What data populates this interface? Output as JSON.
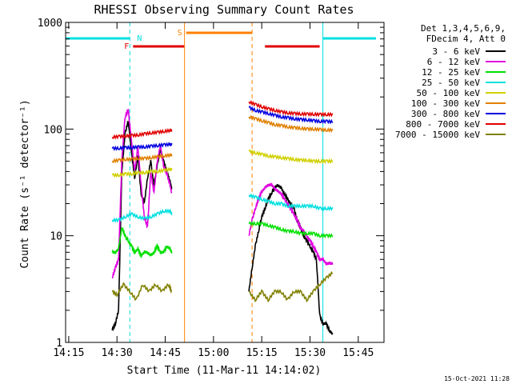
{
  "chart_data": {
    "type": "line",
    "title": "RHESSI Observing Summary Count Rates",
    "xlabel": "Start Time (11-Mar-11 14:14:02)",
    "ylabel": "Count Rate (s⁻¹ detector⁻¹)",
    "y_scale": "log",
    "ylim": [
      1,
      1000
    ],
    "xlim": [
      "14:14:02",
      "15:53:00"
    ],
    "x_ticks": [
      "14:15",
      "14:30",
      "14:45",
      "15:00",
      "15:15",
      "15:30",
      "15:45"
    ],
    "y_ticks": [
      "1",
      "10",
      "100",
      "1000"
    ],
    "legend_header": [
      "Det 1,3,4,5,6,9,",
      "FDecim 4, Att 0"
    ],
    "timestamp": "15-Oct-2021 11:28",
    "legend_position": "right",
    "flags": {
      "night": {
        "label": "N",
        "color": "#00e0e0"
      },
      "flare": {
        "label": "F",
        "color": "#e00000"
      },
      "saa": {
        "label": "S",
        "color": "#ff8000"
      }
    },
    "series": [
      {
        "name": "3 - 6 keV",
        "color": "#000000",
        "segments": [
          {
            "x": [
              "14:28:30",
              "14:29:30",
              "14:30:30",
              "14:31:30",
              "14:32:30",
              "14:33:30",
              "14:34:30",
              "14:35:30",
              "14:36:30",
              "14:37:30",
              "14:38:30",
              "14:39:30",
              "14:40:30",
              "14:41:30",
              "14:42:30",
              "14:43:30",
              "14:44:30",
              "14:45:30",
              "14:46:30",
              "14:47:00"
            ],
            "y": [
              1.3,
              1.5,
              2.0,
              40,
              90,
              120,
              60,
              35,
              55,
              25,
              20,
              35,
              50,
              30,
              45,
              65,
              50,
              40,
              32,
              28
            ]
          },
          {
            "x": [
              "15:11:00",
              "15:12:00",
              "15:13:00",
              "15:14:00",
              "15:15:00",
              "15:16:00",
              "15:17:00",
              "15:18:00",
              "15:19:00",
              "15:20:00",
              "15:21:00",
              "15:22:00",
              "15:23:00",
              "15:24:00",
              "15:25:00",
              "15:26:00",
              "15:27:00",
              "15:28:00",
              "15:29:00",
              "15:30:00",
              "15:31:00",
              "15:32:00",
              "15:33:00",
              "15:34:00",
              "15:35:00",
              "15:36:00",
              "15:37:00"
            ],
            "y": [
              3,
              5,
              8,
              11,
              15,
              18,
              22,
              25,
              28,
              30,
              28,
              25,
              22,
              20,
              18,
              14,
              12,
              10,
              9,
              8,
              7,
              6,
              1.8,
              1.5,
              1.5,
              1.3,
              1.2
            ]
          }
        ]
      },
      {
        "name": "6 - 12 keV",
        "color": "#e000e0",
        "segments": [
          {
            "x": [
              "14:28:30",
              "14:29:30",
              "14:30:30",
              "14:31:30",
              "14:32:30",
              "14:33:30",
              "14:34:30",
              "14:35:30",
              "14:36:30",
              "14:37:30",
              "14:38:30",
              "14:39:30",
              "14:40:30",
              "14:41:30",
              "14:42:30",
              "14:43:30",
              "14:44:30",
              "14:45:30",
              "14:46:30",
              "14:47:00"
            ],
            "y": [
              4,
              5,
              6,
              50,
              130,
              150,
              80,
              40,
              70,
              30,
              15,
              12,
              40,
              25,
              50,
              70,
              45,
              38,
              30,
              25
            ]
          },
          {
            "x": [
              "15:11:00",
              "15:12:00",
              "15:13:00",
              "15:14:00",
              "15:15:00",
              "15:16:00",
              "15:17:00",
              "15:18:00",
              "15:19:00",
              "15:20:00",
              "15:21:00",
              "15:22:00",
              "15:23:00",
              "15:24:00",
              "15:25:00",
              "15:26:00",
              "15:27:00",
              "15:28:00",
              "15:29:00",
              "15:30:00",
              "15:31:00",
              "15:32:00",
              "15:33:00",
              "15:34:00",
              "15:35:00",
              "15:36:00",
              "15:37:00"
            ],
            "y": [
              10,
              14,
              18,
              22,
              26,
              28,
              30,
              30,
              28,
              26,
              25,
              22,
              20,
              18,
              16,
              14,
              12,
              11,
              10,
              9,
              8,
              7,
              6,
              6,
              5.5,
              5.5,
              5.5
            ]
          }
        ]
      },
      {
        "name": "12 - 25 keV",
        "color": "#00e000",
        "segments": [
          {
            "x": [
              "14:28:30",
              "14:29:30",
              "14:30:30",
              "14:31:30",
              "14:32:30",
              "14:33:30",
              "14:34:30",
              "14:35:30",
              "14:36:30",
              "14:37:30",
              "14:38:30",
              "14:39:30",
              "14:40:30",
              "14:41:30",
              "14:42:30",
              "14:43:30",
              "14:44:30",
              "14:45:30",
              "14:46:30",
              "14:47:00"
            ],
            "y": [
              7,
              7,
              7.5,
              12,
              10,
              9,
              8,
              7,
              7.5,
              6.5,
              7,
              7,
              6.5,
              7,
              8,
              7,
              7,
              8,
              7.5,
              7
            ]
          },
          {
            "x": [
              "15:11:00",
              "15:13:00",
              "15:15:00",
              "15:17:00",
              "15:19:00",
              "15:21:00",
              "15:23:00",
              "15:25:00",
              "15:27:00",
              "15:29:00",
              "15:31:00",
              "15:33:00",
              "15:35:00",
              "15:37:00"
            ],
            "y": [
              13,
              13,
              13,
              12.5,
              12,
              11.5,
              11,
              11,
              10.5,
              10.5,
              10.5,
              10,
              10,
              10
            ]
          }
        ]
      },
      {
        "name": "25 - 50 keV",
        "color": "#00e0e0",
        "segments": [
          {
            "x": [
              "14:28:30",
              "14:30:30",
              "14:32:30",
              "14:34:30",
              "14:36:30",
              "14:38:30",
              "14:40:30",
              "14:42:30",
              "14:44:30",
              "14:46:30",
              "14:47:00"
            ],
            "y": [
              14,
              14,
              15,
              16,
              15,
              14.5,
              15,
              16,
              17,
              17,
              16
            ]
          },
          {
            "x": [
              "15:11:00",
              "15:13:00",
              "15:15:00",
              "15:17:00",
              "15:19:00",
              "15:21:00",
              "15:23:00",
              "15:25:00",
              "15:27:00",
              "15:29:00",
              "15:31:00",
              "15:33:00",
              "15:35:00",
              "15:37:00"
            ],
            "y": [
              24,
              23,
              22,
              21,
              20,
              20,
              19,
              19,
              19,
              19,
              19,
              18,
              18,
              18
            ]
          }
        ]
      },
      {
        "name": "50 - 100 keV",
        "color": "#d0d000",
        "segments": [
          {
            "x": [
              "14:28:30",
              "14:30:30",
              "14:32:30",
              "14:34:30",
              "14:36:30",
              "14:38:30",
              "14:40:30",
              "14:42:30",
              "14:44:30",
              "14:46:30",
              "14:47:00"
            ],
            "y": [
              37,
              37,
              38,
              38,
              39,
              39,
              40,
              40,
              41,
              42,
              42
            ]
          },
          {
            "x": [
              "15:11:00",
              "15:13:00",
              "15:15:00",
              "15:17:00",
              "15:19:00",
              "15:21:00",
              "15:23:00",
              "15:25:00",
              "15:27:00",
              "15:29:00",
              "15:31:00",
              "15:33:00",
              "15:35:00",
              "15:37:00"
            ],
            "y": [
              62,
              60,
              58,
              56,
              55,
              54,
              53,
              52,
              51,
              51,
              50,
              50,
              50,
              50
            ]
          }
        ]
      },
      {
        "name": "100 - 300 keV",
        "color": "#e08000",
        "segments": [
          {
            "x": [
              "14:28:30",
              "14:30:30",
              "14:32:30",
              "14:34:30",
              "14:36:30",
              "14:38:30",
              "14:40:30",
              "14:42:30",
              "14:44:30",
              "14:46:30",
              "14:47:00"
            ],
            "y": [
              50,
              51,
              52,
              52,
              53,
              53,
              54,
              55,
              56,
              57,
              57
            ]
          },
          {
            "x": [
              "15:11:00",
              "15:13:00",
              "15:15:00",
              "15:17:00",
              "15:19:00",
              "15:21:00",
              "15:23:00",
              "15:25:00",
              "15:27:00",
              "15:29:00",
              "15:31:00",
              "15:33:00",
              "15:35:00",
              "15:37:00"
            ],
            "y": [
              130,
              125,
              120,
              115,
              110,
              108,
              105,
              103,
              102,
              100,
              100,
              99,
              98,
              98
            ]
          }
        ]
      },
      {
        "name": "300 - 800 keV",
        "color": "#0000e0",
        "segments": [
          {
            "x": [
              "14:28:30",
              "14:30:30",
              "14:32:30",
              "14:34:30",
              "14:36:30",
              "14:38:30",
              "14:40:30",
              "14:42:30",
              "14:44:30",
              "14:46:30",
              "14:47:00"
            ],
            "y": [
              66,
              66,
              67,
              67,
              68,
              68,
              69,
              70,
              71,
              72,
              72
            ]
          },
          {
            "x": [
              "15:11:00",
              "15:13:00",
              "15:15:00",
              "15:17:00",
              "15:19:00",
              "15:21:00",
              "15:23:00",
              "15:25:00",
              "15:27:00",
              "15:29:00",
              "15:31:00",
              "15:33:00",
              "15:35:00",
              "15:37:00"
            ],
            "y": [
              160,
              150,
              145,
              140,
              135,
              130,
              128,
              125,
              123,
              122,
              120,
              118,
              118,
              117
            ]
          }
        ]
      },
      {
        "name": "800 - 7000 keV",
        "color": "#e00000",
        "segments": [
          {
            "x": [
              "14:28:30",
              "14:30:30",
              "14:32:30",
              "14:34:30",
              "14:36:30",
              "14:38:30",
              "14:40:30",
              "14:42:30",
              "14:44:30",
              "14:46:30",
              "14:47:00"
            ],
            "y": [
              84,
              85,
              86,
              87,
              88,
              90,
              92,
              93,
              95,
              97,
              97
            ]
          },
          {
            "x": [
              "15:11:00",
              "15:13:00",
              "15:15:00",
              "15:17:00",
              "15:19:00",
              "15:21:00",
              "15:23:00",
              "15:25:00",
              "15:27:00",
              "15:29:00",
              "15:31:00",
              "15:33:00",
              "15:35:00",
              "15:37:00"
            ],
            "y": [
              180,
              170,
              162,
              155,
              150,
              145,
              142,
              140,
              139,
              138,
              138,
              137,
              137,
              137
            ]
          }
        ]
      },
      {
        "name": "7000 - 15000 keV",
        "color": "#808000",
        "segments": [
          {
            "x": [
              "14:28:30",
              "14:30:00",
              "14:32:00",
              "14:34:00",
              "14:36:00",
              "14:38:00",
              "14:40:00",
              "14:42:00",
              "14:44:00",
              "14:46:00",
              "14:47:00"
            ],
            "y": [
              3,
              2.8,
              3.5,
              3,
              2.5,
              3.5,
              3,
              3.5,
              3,
              3.5,
              3
            ]
          },
          {
            "x": [
              "15:11:00",
              "15:13:00",
              "15:15:00",
              "15:17:00",
              "15:19:00",
              "15:21:00",
              "15:23:00",
              "15:25:00",
              "15:27:00",
              "15:29:00",
              "15:31:00",
              "15:33:00",
              "15:35:00",
              "15:37:00"
            ],
            "y": [
              3,
              2.5,
              3,
              2.5,
              3,
              3,
              2.5,
              3,
              3,
              2.5,
              3,
              3.5,
              4,
              4.5
            ]
          }
        ]
      }
    ]
  }
}
